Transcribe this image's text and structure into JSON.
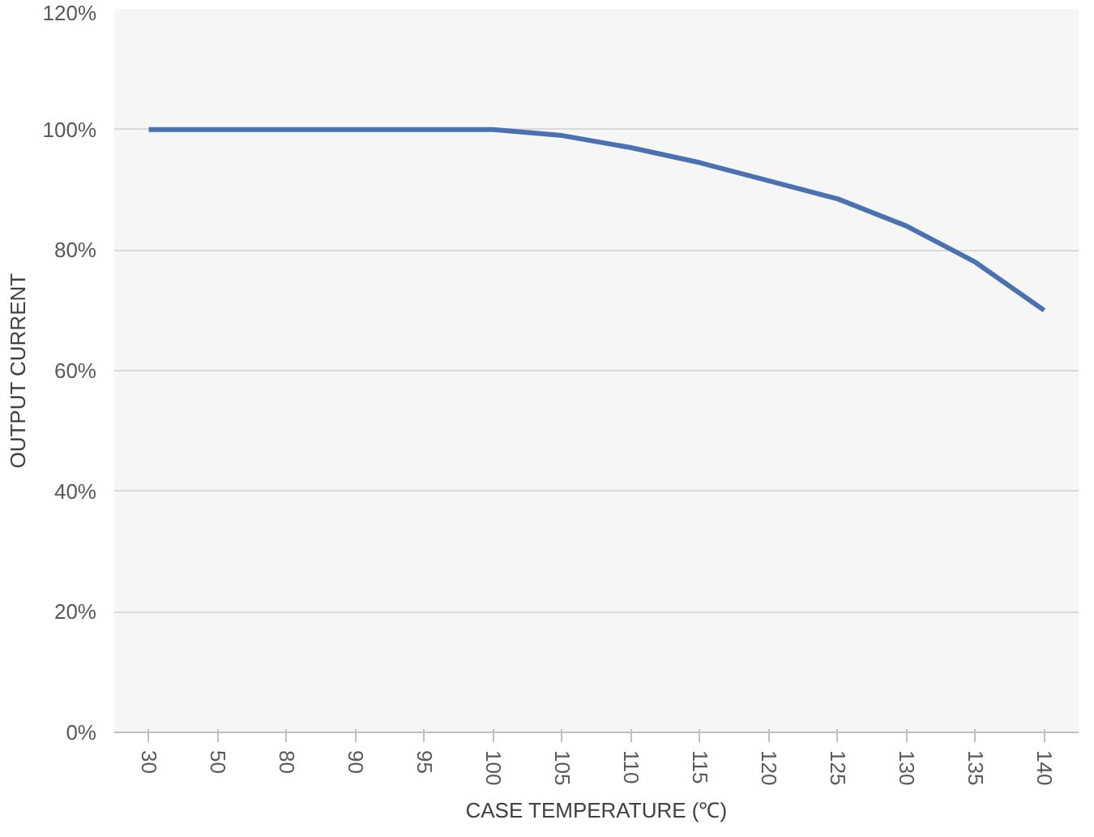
{
  "chart_data": {
    "type": "line",
    "xlabel": "CASE TEMPERATURE (℃)",
    "ylabel": "OUTPUT CURRENT",
    "categories": [
      "30",
      "50",
      "80",
      "90",
      "95",
      "100",
      "105",
      "110",
      "115",
      "120",
      "125",
      "130",
      "135",
      "140"
    ],
    "series": [
      {
        "color": "#4a72b0",
        "values": [
          100,
          100,
          100,
          100,
          100,
          100,
          99,
          97,
          94.5,
          91.5,
          88.5,
          84,
          78,
          70
        ]
      }
    ],
    "ylim": [
      0,
      120
    ],
    "yticks": [
      {
        "value": 0,
        "label": "0%"
      },
      {
        "value": 20,
        "label": "20%"
      },
      {
        "value": 40,
        "label": "40%"
      },
      {
        "value": 60,
        "label": "60%"
      },
      {
        "value": 80,
        "label": "80%"
      },
      {
        "value": 100,
        "label": "100%"
      },
      {
        "value": 120,
        "label": "120%"
      }
    ],
    "grid": "y",
    "marker": "none",
    "line_style": "solid"
  }
}
